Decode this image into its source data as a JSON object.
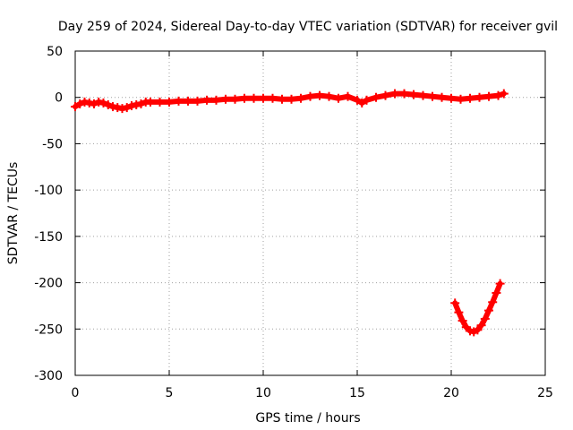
{
  "chart_data": {
    "type": "scatter",
    "title": "Day 259 of 2024, Sidereal Day-to-day VTEC variation (SDTVAR) for receiver gvil",
    "xlabel": "GPS time / hours",
    "ylabel": "SDTVAR / TECUs",
    "xlim": [
      0,
      25
    ],
    "ylim": [
      -300,
      50
    ],
    "xticks": [
      0,
      5,
      10,
      15,
      20,
      25
    ],
    "yticks": [
      50,
      0,
      -50,
      -100,
      -150,
      -200,
      -250,
      -300
    ],
    "grid": true,
    "legend": "none",
    "marker": "plus",
    "color": "#ff0000",
    "series": [
      {
        "x": [
          0.0,
          0.25,
          0.5,
          0.75,
          1.0,
          1.25,
          1.5,
          1.75,
          2.0,
          2.25,
          2.5,
          2.75,
          3.0,
          3.25,
          3.5,
          3.75,
          4.0,
          4.5,
          5.0,
          5.5,
          6.0,
          6.5,
          7.0,
          7.5,
          8.0,
          8.5,
          9.0,
          9.5,
          10.0,
          10.5,
          11.0,
          11.5,
          12.0,
          12.5,
          13.0,
          13.5,
          14.0,
          14.5,
          15.0,
          15.25,
          15.5,
          16.0,
          16.5,
          17.0,
          17.5,
          18.0,
          18.5,
          19.0,
          19.5,
          20.0,
          20.5,
          21.0,
          21.5,
          22.0,
          22.5,
          22.8
        ],
        "y": [
          -10,
          -7,
          -5,
          -6,
          -7,
          -5,
          -6,
          -8,
          -10,
          -11,
          -12,
          -11,
          -9,
          -8,
          -7,
          -5,
          -5,
          -5,
          -5,
          -4,
          -4,
          -4,
          -3,
          -3,
          -2,
          -2,
          -1,
          -1,
          -1,
          -1,
          -2,
          -2,
          -1,
          1,
          2,
          1,
          -1,
          1,
          -3,
          -6,
          -3,
          0,
          2,
          4,
          4,
          3,
          2,
          1,
          0,
          -1,
          -2,
          -1,
          0,
          1,
          2,
          4
        ]
      },
      {
        "x": [
          20.2,
          20.4,
          20.6,
          20.8,
          21.0,
          21.2,
          21.4,
          21.6,
          21.8,
          22.0,
          22.2,
          22.4,
          22.6
        ],
        "y": [
          -222,
          -232,
          -241,
          -248,
          -252,
          -253,
          -251,
          -246,
          -239,
          -230,
          -221,
          -211,
          -201
        ]
      }
    ]
  }
}
